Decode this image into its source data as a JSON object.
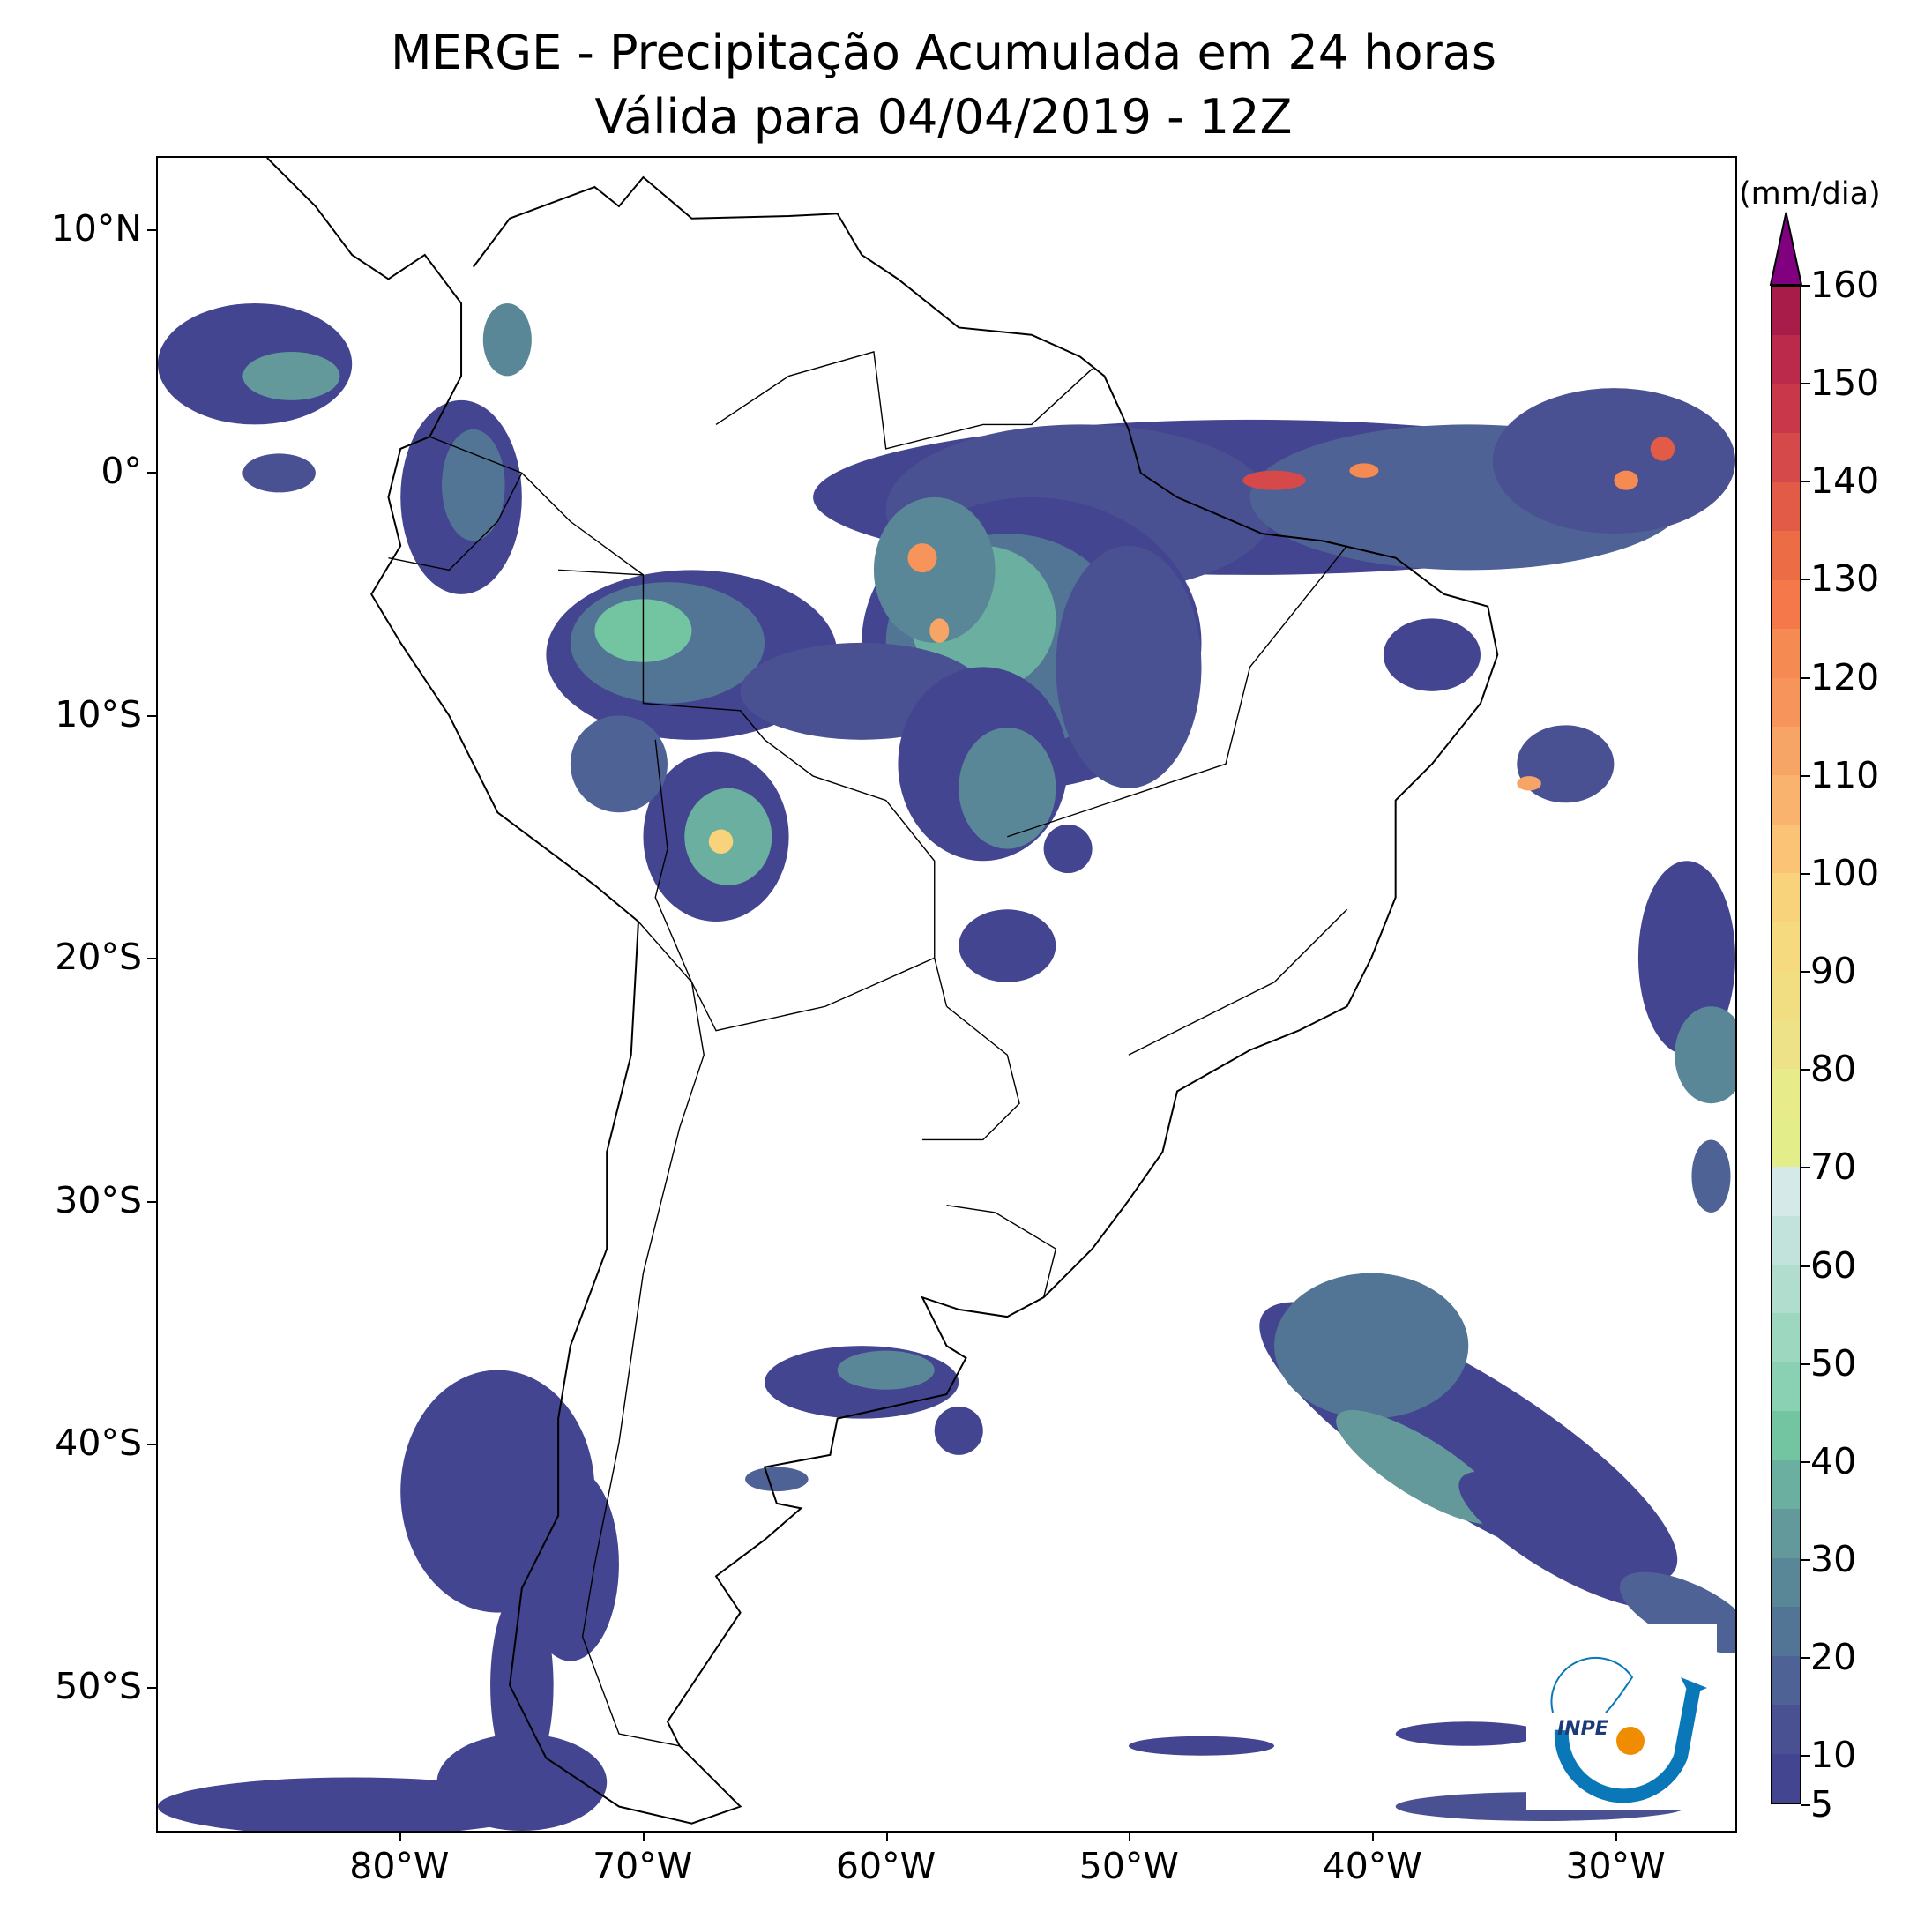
{
  "title": {
    "line1": "MERGE - Precipitação Acumulada em 24 horas",
    "line2": "Válida para 04/04/2019 - 12Z"
  },
  "map": {
    "lon_range": [
      -90,
      -25
    ],
    "lat_range": [
      -56,
      13
    ],
    "lat_ticks": [
      {
        "value": 10,
        "label": "10°N"
      },
      {
        "value": 0,
        "label": "0°"
      },
      {
        "value": -10,
        "label": "10°S"
      },
      {
        "value": -20,
        "label": "20°S"
      },
      {
        "value": -30,
        "label": "30°S"
      },
      {
        "value": -40,
        "label": "40°S"
      },
      {
        "value": -50,
        "label": "50°S"
      }
    ],
    "lon_ticks": [
      {
        "value": -80,
        "label": "80°W"
      },
      {
        "value": -70,
        "label": "70°W"
      },
      {
        "value": -60,
        "label": "60°W"
      },
      {
        "value": -50,
        "label": "50°W"
      },
      {
        "value": -40,
        "label": "40°W"
      },
      {
        "value": -30,
        "label": "30°W"
      }
    ]
  },
  "colorbar": {
    "unit": "(mm/dia)",
    "min": 5,
    "max": 160,
    "step": 5,
    "extend_color": "#800080",
    "ticks": [
      "5",
      "10",
      "20",
      "30",
      "40",
      "50",
      "60",
      "70",
      "80",
      "90",
      "100",
      "110",
      "120",
      "130",
      "140",
      "150",
      "160"
    ],
    "colors": [
      "#434590",
      "#4a5192",
      "#4f6295",
      "#527495",
      "#5a8797",
      "#63999b",
      "#6aaf9f",
      "#72c5a0",
      "#8ad0b2",
      "#9dd7bf",
      "#b0ddcd",
      "#c2e3dc",
      "#d5eae8",
      "#e3ed8a",
      "#e8eb8a",
      "#ede287",
      "#f1dd82",
      "#f5da7f",
      "#f9d37b",
      "#fbc376",
      "#f9b36e",
      "#f7a566",
      "#f6945b",
      "#f58a52",
      "#f4784a",
      "#ec6c45",
      "#e15b47",
      "#d5494a",
      "#c9384a",
      "#bb2a4a",
      "#a81c49"
    ]
  },
  "logo": {
    "text": "INPE"
  }
}
